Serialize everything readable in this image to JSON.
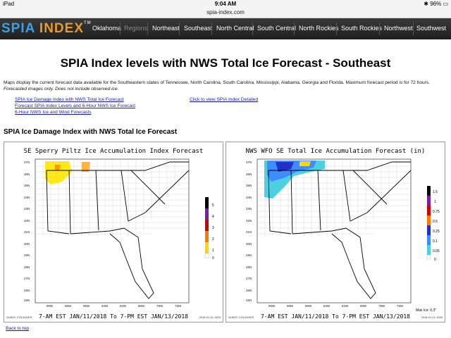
{
  "status": {
    "device": "iPad",
    "time": "9:04 AM",
    "battery": "96%"
  },
  "url": "spia-index.com",
  "logo": {
    "part1": "SPIA",
    "part2": "INDEX",
    "tm": "TM"
  },
  "nav": {
    "oklahoma": "Oklahoma",
    "regions": "Regions:",
    "items": [
      "Northeast",
      "Southeast",
      "North Central",
      "South Central",
      "North Rockies",
      "South Rockies",
      "Northwest",
      "Southwest"
    ]
  },
  "page_title": "SPIA Index levels with NWS Total Ice Forecast - Southeast",
  "description": "Maps display the current forecast data available for the Southeastern states of Tennessee, North Carolina, South Carolina, Mississippi, Alabama, Georgia and Florida. Maximum forecast period is for 72 hours.",
  "description_note": "Forecasted images only. Does not include observed ice.",
  "links": {
    "ice_damage": "SPIA Ice Damage Index with NWS Total Ice Forecast",
    "forecast_levels": "Forecast SPIA Index Levels and 6-Hour NWS Ice Forecast",
    "six_hour": "6-Hour NWS Ice and Wind Forecasts",
    "detailed": "Click to view SPIA Index Detailed"
  },
  "section_title": "SPIA Ice Damage Index with NWS Total Ice Forecast",
  "map_left": {
    "title": "SE Sperry Piltz Ice Accumulation Index Forecast",
    "footer": "7-AM EST JAN/11/2018 To 7-PM EST JAN/13/2018",
    "credit": "GrADS: COLA/IGES",
    "date": "2018-01-11-1403",
    "legend": [
      "5",
      "4",
      "3",
      "2",
      "1",
      "0"
    ],
    "legend_colors": [
      "#000000",
      "#7a1fa2",
      "#d40000",
      "#ff7a00",
      "#ffd700",
      "#ffffff"
    ],
    "lat_labels": [
      "37N",
      "36N",
      "35N",
      "34N",
      "33N",
      "32N",
      "31N",
      "30N",
      "29N",
      "28N",
      "27N",
      "26N",
      "25N"
    ],
    "lon_labels": [
      "90W",
      "88W",
      "86W",
      "84W",
      "82W",
      "80W",
      "78W",
      "76W"
    ]
  },
  "map_right": {
    "title": "NWS WFO SE Total Ice Accumulation Forecast (in)",
    "footer": "7-AM EST JAN/11/2018 To 7-PM EST JAN/13/2018",
    "credit": "GrADS: COLA/IGES",
    "date": "2018-01-11-1349",
    "max": "Max Ice: 0.3\"",
    "legend": [
      "1.5",
      "1",
      "0.75",
      "0.5",
      "0.25",
      "0.1",
      "0.05",
      "0"
    ],
    "legend_colors": [
      "#000000",
      "#7a1fa2",
      "#d40000",
      "#ff7a00",
      "#2030c8",
      "#3f8cff",
      "#4fd0e0",
      "#ffffff"
    ],
    "lat_labels": [
      "37N",
      "36N",
      "35N",
      "34N",
      "33N",
      "32N",
      "31N",
      "30N",
      "29N",
      "28N",
      "27N",
      "26N",
      "25N"
    ],
    "lon_labels": [
      "90W",
      "88W",
      "86W",
      "84W",
      "82W",
      "80W",
      "78W",
      "76W"
    ]
  },
  "back_to_top": "Back to top"
}
